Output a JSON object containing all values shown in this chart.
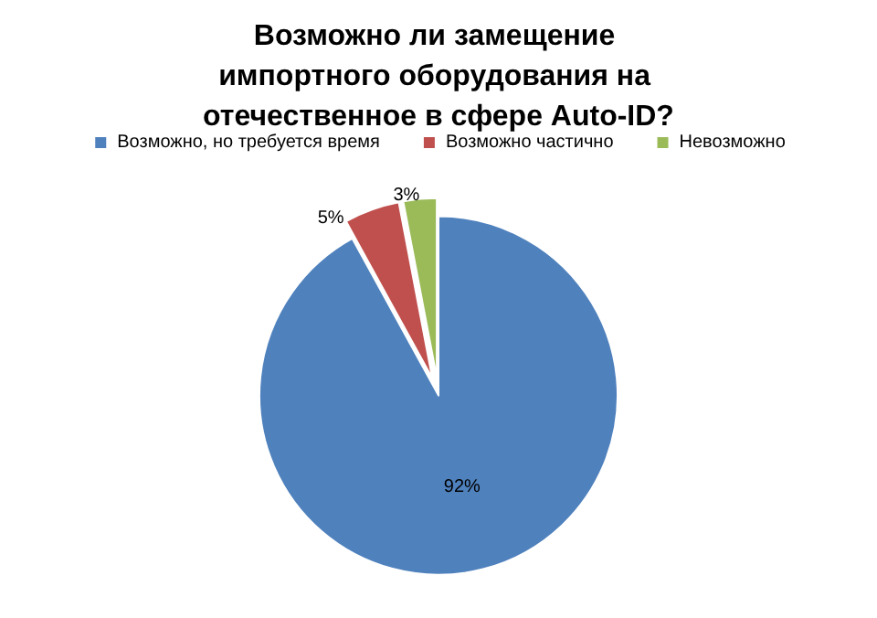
{
  "chart_data": {
    "type": "pie",
    "title": "Возможно ли замещение импортного оборудования на отечественное в сфере Auto-ID?",
    "categories": [
      "Возможно, но требуется время",
      "Возможно частично",
      "Невозможно"
    ],
    "values": [
      92,
      5,
      3
    ],
    "colors": [
      "#4f81bd",
      "#c0504d",
      "#9bbb59"
    ],
    "value_labels": [
      "92%",
      "5%",
      "3%"
    ],
    "legend": "top"
  }
}
